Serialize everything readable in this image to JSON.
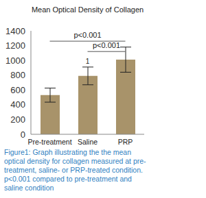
{
  "chart_data": {
    "type": "bar",
    "title": "Mean Optical Density of Collagen",
    "categories": [
      "Pre-treatment",
      "Saline",
      "PRP"
    ],
    "values": [
      530,
      790,
      1010
    ],
    "errors": [
      95,
      120,
      170
    ],
    "color": "#a8936a",
    "ylim": [
      0,
      1400
    ],
    "yticks": [
      0,
      200,
      400,
      600,
      800,
      1000,
      1200,
      1400
    ],
    "grid": false,
    "annotations": [
      {
        "text": "p<0.001",
        "from": "Pre-treatment",
        "to": "PRP"
      },
      {
        "text": "p<0.001",
        "from": "Saline",
        "to": "PRP"
      },
      {
        "text": "1",
        "at": "Saline"
      }
    ],
    "caption": "Figure1: Graph illustrating the the mean optical density for collagen measured at pre-treatment, saline- or PRP-treated condition. p<0.001 compared to pre-treatment and saline condition"
  }
}
